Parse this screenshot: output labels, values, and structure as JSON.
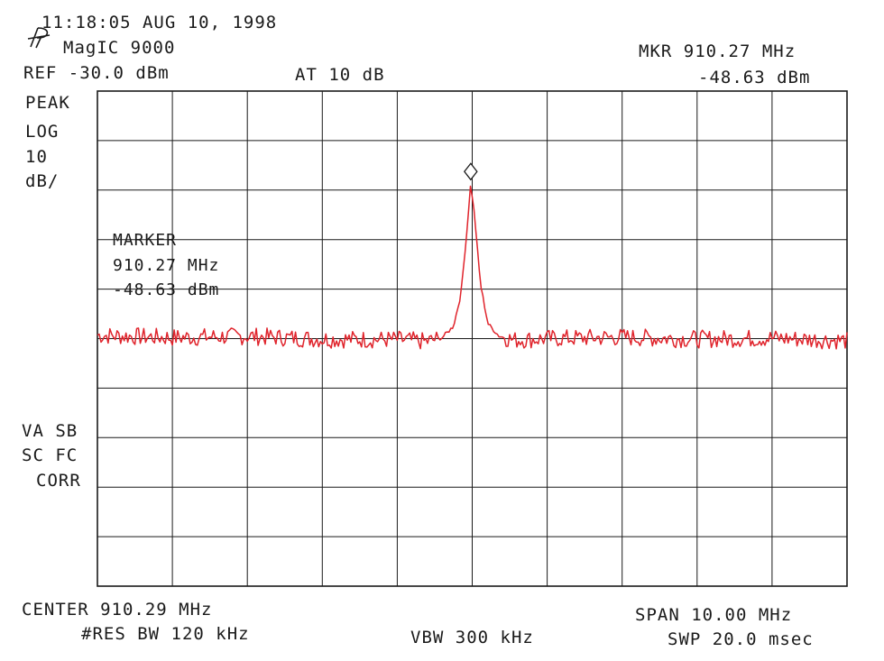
{
  "header": {
    "timestamp": "11:18:05 AUG 10, 1998",
    "instrument": "MagIC 9000",
    "ref_level": "REF -30.0 dBm",
    "attenuation": "AT 10 dB",
    "marker_freq": "MKR 910.27 MHz",
    "marker_level": "-48.63 dBm"
  },
  "left_annotations": {
    "detector": "PEAK",
    "scale_type": "LOG",
    "scale_value": "10",
    "scale_unit": "dB/",
    "flags_line1": "VA SB",
    "flags_line2": "SC FC",
    "flags_line3": "CORR"
  },
  "marker_box": {
    "title": "MARKER",
    "freq": "910.27 MHz",
    "level": "-48.63 dBm"
  },
  "footer": {
    "center": "CENTER 910.29 MHz",
    "span": "SPAN 10.00 MHz",
    "res_bw": "#RES BW 120 kHz",
    "vbw": "VBW 300 kHz",
    "sweep": "SWP 20.0 msec"
  },
  "colors": {
    "trace": "#e0242c",
    "grid": "#1a1a1a",
    "text": "#1a1a1a"
  },
  "icons": {
    "logo": "hp-logo-icon",
    "marker": "diamond-marker-icon"
  },
  "chart_data": {
    "type": "line",
    "x_unit": "MHz",
    "y_unit": "dBm",
    "xlim": [
      905.29,
      915.29
    ],
    "ylim": [
      -130.0,
      -30.0
    ],
    "x_divisions": 10,
    "y_divisions": 10,
    "grid": true,
    "log_scale_db_per_div": 10,
    "center_mhz": 910.29,
    "span_mhz": 10.0,
    "noise_floor_dbm": -80.0,
    "marker": {
      "x": 910.27,
      "y": -48.63
    },
    "x": [
      905.29,
      906.29,
      907.29,
      908.29,
      909.29,
      909.69,
      909.89,
      910.04,
      910.14,
      910.22,
      910.27,
      910.32,
      910.4,
      910.5,
      910.65,
      910.85,
      911.29,
      912.29,
      913.29,
      914.29,
      915.29
    ],
    "y": [
      -79.3,
      -79.8,
      -79.5,
      -80.1,
      -80.2,
      -80.6,
      -79.8,
      -77.5,
      -71.0,
      -58.0,
      -48.63,
      -55.0,
      -69.0,
      -77.0,
      -79.5,
      -80.3,
      -80.0,
      -79.7,
      -80.1,
      -79.9,
      -80.4
    ]
  }
}
